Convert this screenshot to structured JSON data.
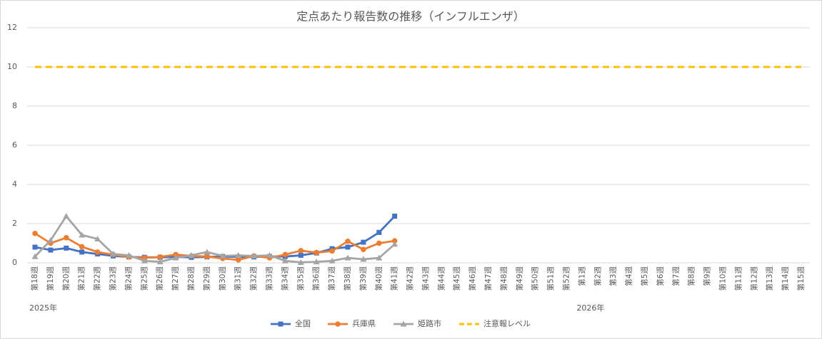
{
  "chart_data": {
    "type": "line",
    "title": "定点あたり報告数の推移（インフルエンザ）",
    "categories": [
      "第18週",
      "第19週",
      "第20週",
      "第21週",
      "第22週",
      "第23週",
      "第24週",
      "第25週",
      "第26週",
      "第27週",
      "第28週",
      "第29週",
      "第30週",
      "第31週",
      "第32週",
      "第33週",
      "第34週",
      "第35週",
      "第36週",
      "第37週",
      "第38週",
      "第39週",
      "第40週",
      "第41週",
      "第42週",
      "第43週",
      "第44週",
      "第45週",
      "第46週",
      "第47週",
      "第48週",
      "第49週",
      "第50週",
      "第51週",
      "第52週",
      "第1週",
      "第2週",
      "第3週",
      "第4週",
      "第5週",
      "第6週",
      "第7週",
      "第8週",
      "第9週",
      "第10週",
      "第11週",
      "第12週",
      "第13週",
      "第14週",
      "第15週"
    ],
    "year_labels": [
      "2025年",
      "2026年"
    ],
    "series": [
      {
        "name": "全国",
        "color": "#4472c4",
        "marker": "square",
        "values": [
          0.8,
          0.65,
          0.75,
          0.55,
          0.45,
          0.35,
          0.3,
          0.28,
          0.28,
          0.3,
          0.28,
          0.3,
          0.32,
          0.3,
          0.3,
          0.32,
          0.32,
          0.38,
          0.5,
          0.72,
          0.8,
          1.05,
          1.55,
          2.38,
          null,
          null,
          null,
          null,
          null,
          null,
          null,
          null,
          null,
          null,
          null,
          null,
          null,
          null,
          null,
          null,
          null,
          null,
          null,
          null,
          null,
          null,
          null,
          null,
          null,
          null
        ]
      },
      {
        "name": "兵庫県",
        "color": "#ed7d31",
        "marker": "circle",
        "values": [
          1.5,
          1.0,
          1.28,
          0.82,
          0.55,
          0.42,
          0.3,
          0.25,
          0.3,
          0.42,
          0.35,
          0.32,
          0.22,
          0.15,
          0.35,
          0.25,
          0.42,
          0.62,
          0.52,
          0.6,
          1.1,
          0.68,
          1.0,
          1.12,
          null,
          null,
          null,
          null,
          null,
          null,
          null,
          null,
          null,
          null,
          null,
          null,
          null,
          null,
          null,
          null,
          null,
          null,
          null,
          null,
          null,
          null,
          null,
          null,
          null,
          null
        ]
      },
      {
        "name": "姫路市",
        "color": "#a5a5a5",
        "marker": "triangle",
        "values": [
          0.32,
          1.15,
          2.38,
          1.42,
          1.22,
          0.45,
          0.38,
          0.1,
          0.05,
          0.25,
          0.38,
          0.55,
          0.35,
          0.38,
          0.35,
          0.38,
          0.1,
          0.02,
          0.05,
          0.1,
          0.25,
          0.18,
          0.25,
          0.95,
          null,
          null,
          null,
          null,
          null,
          null,
          null,
          null,
          null,
          null,
          null,
          null,
          null,
          null,
          null,
          null,
          null,
          null,
          null,
          null,
          null,
          null,
          null,
          null,
          null,
          null
        ]
      },
      {
        "name": "注意報レベル",
        "color": "#ffc000",
        "dashed": true,
        "values": [
          10,
          10,
          10,
          10,
          10,
          10,
          10,
          10,
          10,
          10,
          10,
          10,
          10,
          10,
          10,
          10,
          10,
          10,
          10,
          10,
          10,
          10,
          10,
          10,
          10,
          10,
          10,
          10,
          10,
          10,
          10,
          10,
          10,
          10,
          10,
          10,
          10,
          10,
          10,
          10,
          10,
          10,
          10,
          10,
          10,
          10,
          10,
          10,
          10,
          10
        ]
      }
    ],
    "ylim": [
      0,
      12
    ],
    "yticks": [
      0,
      2,
      4,
      6,
      8,
      10,
      12
    ],
    "grid": true,
    "legend": "bottom"
  }
}
